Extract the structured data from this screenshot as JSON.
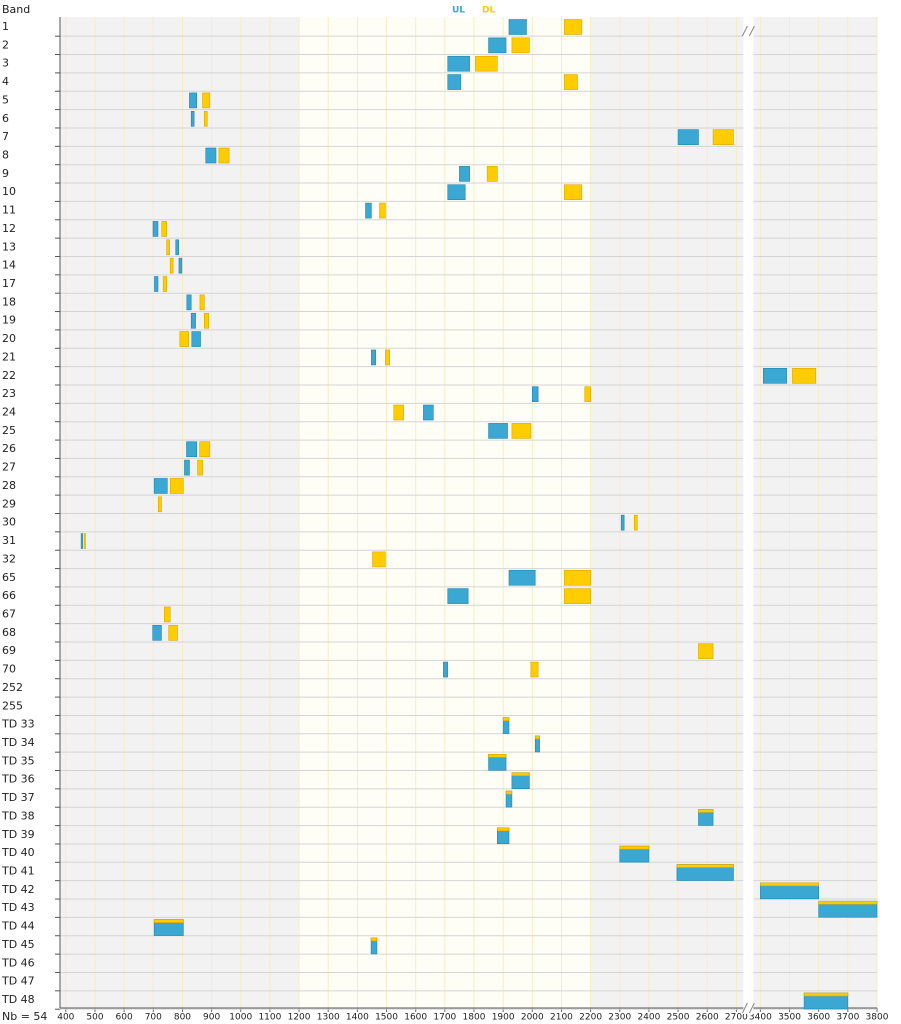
{
  "chart_data": {
    "type": "range-bar",
    "header": "Band",
    "footer": "Nb = 54",
    "categories": [
      "1",
      "2",
      "3",
      "4",
      "5",
      "6",
      "7",
      "8",
      "9",
      "10",
      "11",
      "12",
      "13",
      "14",
      "17",
      "18",
      "19",
      "20",
      "21",
      "22",
      "23",
      "24",
      "25",
      "26",
      "27",
      "28",
      "29",
      "30",
      "31",
      "32",
      "65",
      "66",
      "67",
      "68",
      "69",
      "70",
      "252",
      "255",
      "TD 33",
      "TD 34",
      "TD 35",
      "TD 36",
      "TD 37",
      "TD 38",
      "TD 39",
      "TD 40",
      "TD 41",
      "TD 42",
      "TD 43",
      "TD 44",
      "TD 45",
      "TD 46",
      "TD 47",
      "TD 48"
    ],
    "series": [
      {
        "name": "UL",
        "color": "#3aa8d2",
        "values": [
          [
            1920,
            1980
          ],
          [
            1850,
            1910
          ],
          [
            1710,
            1785
          ],
          [
            1710,
            1755
          ],
          [
            824,
            849
          ],
          [
            830,
            840
          ],
          [
            2500,
            2570
          ],
          [
            880,
            915
          ],
          [
            1750,
            1785
          ],
          [
            1710,
            1770
          ],
          [
            1428,
            1448
          ],
          [
            699,
            716
          ],
          [
            777,
            787
          ],
          [
            788,
            798
          ],
          [
            704,
            716
          ],
          [
            815,
            830
          ],
          [
            830,
            845
          ],
          [
            832,
            862
          ],
          [
            1448,
            1463
          ],
          [
            3410,
            3490
          ],
          [
            2000,
            2020
          ],
          [
            1626.5,
            1660.5
          ],
          [
            1850,
            1915
          ],
          [
            814,
            849
          ],
          [
            807,
            824
          ],
          [
            703,
            748
          ],
          null,
          [
            2305,
            2315
          ],
          [
            452.5,
            457.5
          ],
          null,
          [
            1920,
            2010
          ],
          [
            1710,
            1780
          ],
          null,
          [
            698,
            728
          ],
          null,
          [
            1695,
            1710
          ],
          null,
          null,
          [
            1900,
            1920
          ],
          [
            2010,
            2025
          ],
          [
            1850,
            1910
          ],
          [
            1930,
            1990
          ],
          [
            1910,
            1930
          ],
          [
            2570,
            2620
          ],
          [
            1880,
            1920
          ],
          [
            2300,
            2400
          ],
          [
            2496,
            2690
          ],
          [
            3400,
            3600
          ],
          [
            3600,
            3800
          ],
          [
            703,
            803
          ],
          [
            1447,
            1467
          ],
          null,
          null,
          [
            3550,
            3700
          ]
        ]
      },
      {
        "name": "DL",
        "color": "#ffcc00",
        "values": [
          [
            2110,
            2170
          ],
          [
            1930,
            1990
          ],
          [
            1805,
            1880
          ],
          [
            2110,
            2155
          ],
          [
            869,
            894
          ],
          [
            875,
            885
          ],
          [
            2620,
            2690
          ],
          [
            925,
            960
          ],
          [
            1845,
            1880
          ],
          [
            2110,
            2170
          ],
          [
            1476,
            1496
          ],
          [
            729,
            746
          ],
          [
            746,
            756
          ],
          [
            758,
            768
          ],
          [
            734,
            746
          ],
          [
            860,
            875
          ],
          [
            875,
            890
          ],
          [
            791,
            821
          ],
          [
            1496,
            1511
          ],
          [
            3510,
            3590
          ],
          [
            2180,
            2200
          ],
          [
            1525,
            1559
          ],
          [
            1930,
            1995
          ],
          [
            859,
            894
          ],
          [
            852,
            869
          ],
          [
            758,
            803
          ],
          [
            717,
            728
          ],
          [
            2350,
            2360
          ],
          [
            462.5,
            467.5
          ],
          [
            1452,
            1496
          ],
          [
            2110,
            2200
          ],
          [
            2110,
            2200
          ],
          [
            738,
            758
          ],
          [
            753,
            783
          ],
          [
            2570,
            2620
          ],
          [
            1995,
            2020
          ],
          null,
          null,
          [
            1900,
            1920
          ],
          [
            2010,
            2025
          ],
          [
            1850,
            1910
          ],
          [
            1930,
            1990
          ],
          [
            1910,
            1930
          ],
          [
            2570,
            2620
          ],
          [
            1880,
            1920
          ],
          [
            2300,
            2400
          ],
          [
            2496,
            2690
          ],
          [
            3400,
            3600
          ],
          [
            3600,
            3800
          ],
          [
            703,
            803
          ],
          [
            1447,
            1467
          ],
          null,
          null,
          [
            3550,
            3700
          ]
        ]
      }
    ],
    "xlim": [
      380,
      3800
    ],
    "xbreak": [
      2700,
      3400
    ],
    "xticks": [
      400,
      500,
      600,
      700,
      800,
      900,
      1000,
      1100,
      1200,
      1300,
      1400,
      1500,
      1600,
      1700,
      1800,
      1900,
      2000,
      2100,
      2200,
      2300,
      2400,
      2500,
      2600,
      2700,
      3400,
      3500,
      3600,
      3700,
      3800
    ],
    "shaded_ranges": [
      [
        380,
        1200
      ],
      [
        2200,
        3800
      ]
    ],
    "grid": true
  }
}
